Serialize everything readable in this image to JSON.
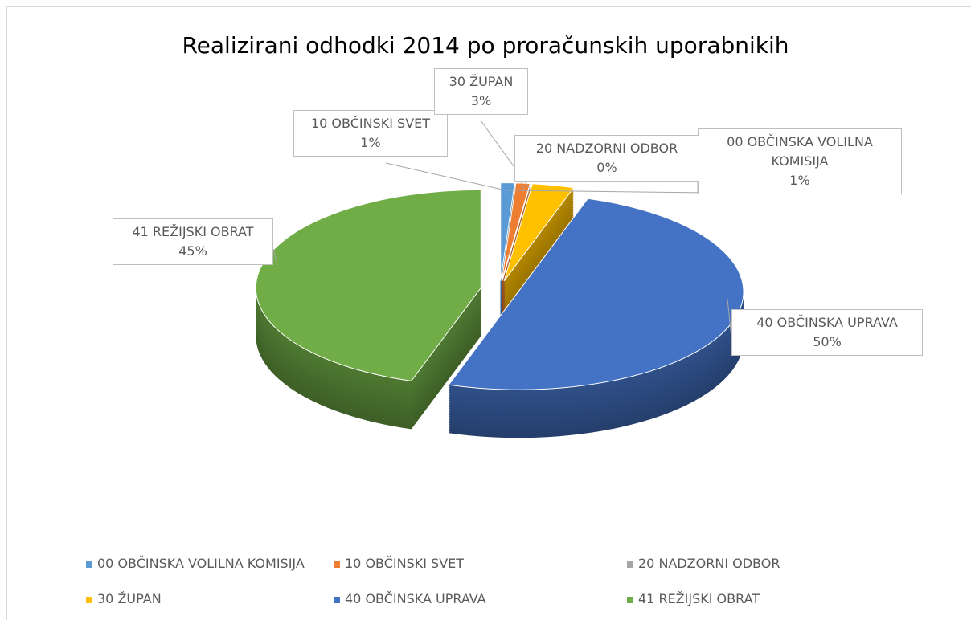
{
  "chart_data": {
    "type": "pie",
    "title": "Realizirani odhodki 2014 po proračunskih uporabnikih",
    "categories": [
      "00 OBČINSKA VOLILNA KOMISIJA",
      "10 OBČINSKI SVET",
      "20 NADZORNI ODBOR",
      "30 ŽUPAN",
      "40 OBČINSKA UPRAVA",
      "41 REŽIJSKI OBRAT"
    ],
    "values": [
      1,
      1,
      0,
      3,
      50,
      45
    ],
    "value_labels": [
      "1%",
      "1%",
      "0%",
      "3%",
      "50%",
      "45%"
    ],
    "colors": [
      "#5b9bd5",
      "#ed7d31",
      "#a5a5a5",
      "#ffc000",
      "#4472c4",
      "#70ad47"
    ],
    "legend": "bottom"
  }
}
